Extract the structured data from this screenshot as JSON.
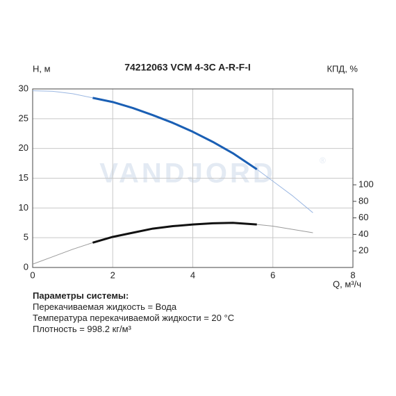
{
  "chart_data": {
    "type": "line",
    "title": "74212063 VCM 4-3C A-R-F-I",
    "ylabel": "H, м",
    "y2label": "КПД, %",
    "xlabel": "Q, м³/ч",
    "watermark": "VANDJORD",
    "watermark_mark": "®",
    "x": [
      0,
      0.5,
      1,
      1.5,
      2,
      2.5,
      3,
      3.5,
      4,
      4.5,
      5,
      5.6,
      6,
      6.5,
      7
    ],
    "working_range": [
      1.5,
      5.6
    ],
    "series": [
      {
        "color": "#1a5fb4",
        "thin_color": "#9bb7e2",
        "values": [
          29.7,
          29.6,
          29.2,
          28.5,
          27.8,
          26.8,
          25.6,
          24.3,
          22.8,
          21.1,
          19.2,
          16.5,
          14.5,
          12,
          9.2
        ]
      },
      {
        "color": "#111111",
        "thin_color": "#9a9a9a",
        "axis": "y2",
        "values": [
          4,
          13,
          22,
          30,
          37,
          42,
          47,
          50,
          52,
          53.5,
          54,
          52,
          50,
          46,
          42
        ]
      }
    ],
    "xlim": [
      0,
      8
    ],
    "xticks": [
      0,
      2,
      4,
      6,
      8
    ],
    "ylim": [
      0,
      30
    ],
    "yticks": [
      0,
      5,
      10,
      15,
      20,
      25,
      30
    ],
    "y2lim": [
      0,
      216
    ],
    "y2ticks": [
      20,
      40,
      60,
      80,
      100
    ],
    "grid": true
  },
  "info": {
    "heading": "Параметры системы:",
    "lines": [
      "Перекачиваемая жидкость = Вода",
      "Температура перекачиваемой жидкости = 20 °C",
      "Плотность = 998.2 кг/м³"
    ]
  }
}
